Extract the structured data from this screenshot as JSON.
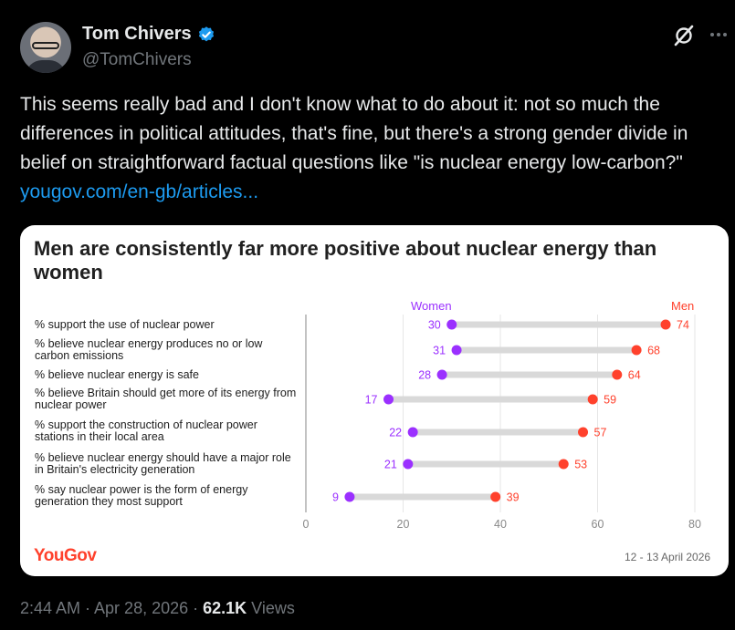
{
  "author": {
    "name": "Tom Chivers",
    "handle": "@TomChivers"
  },
  "tweet": {
    "text": "This seems really bad and I don't know what to do about it: not so much the differences in political attitudes, that's fine, but there's a strong gender divide in belief on straightforward factual questions like \"is nuclear energy low-carbon?\" ",
    "link": "yougov.com/en-gb/articles..."
  },
  "card": {
    "title": "Men are consistently far more positive about nuclear energy than women",
    "brand": "YouGov",
    "date": "12 - 13 April 2026",
    "legend_women": "Women",
    "legend_men": "Men"
  },
  "chart_data": {
    "type": "dumbbell",
    "title": "Men are consistently far more positive about nuclear energy than women",
    "xlim": [
      0,
      80
    ],
    "x_ticks": [
      "0",
      "20",
      "40",
      "60",
      "80"
    ],
    "series": [
      {
        "name": "Women",
        "color": "#9b30ff",
        "values": [
          30,
          31,
          28,
          17,
          22,
          21,
          9
        ]
      },
      {
        "name": "Men",
        "color": "#ff412c",
        "values": [
          74,
          68,
          64,
          59,
          57,
          53,
          39
        ]
      }
    ],
    "categories": [
      "% support the use of nuclear power",
      "% believe nuclear energy produces no or low carbon emissions",
      "% believe nuclear energy is safe",
      "% believe Britain should get more of its energy from nuclear power",
      "% support the construction of nuclear power stations in their local area",
      "% believe nuclear energy should have a major role in Britain's electricity generation",
      "% say nuclear power is the form of energy generation they most support"
    ]
  },
  "footer": {
    "time": "2:44 AM · Apr 28, 2026 · ",
    "views_count": "62.1K",
    "views_label": " Views"
  },
  "colors": {
    "link": "#1d9bf0",
    "verified": "#1d9bf0",
    "women": "#9b30ff",
    "men": "#ff412c"
  }
}
